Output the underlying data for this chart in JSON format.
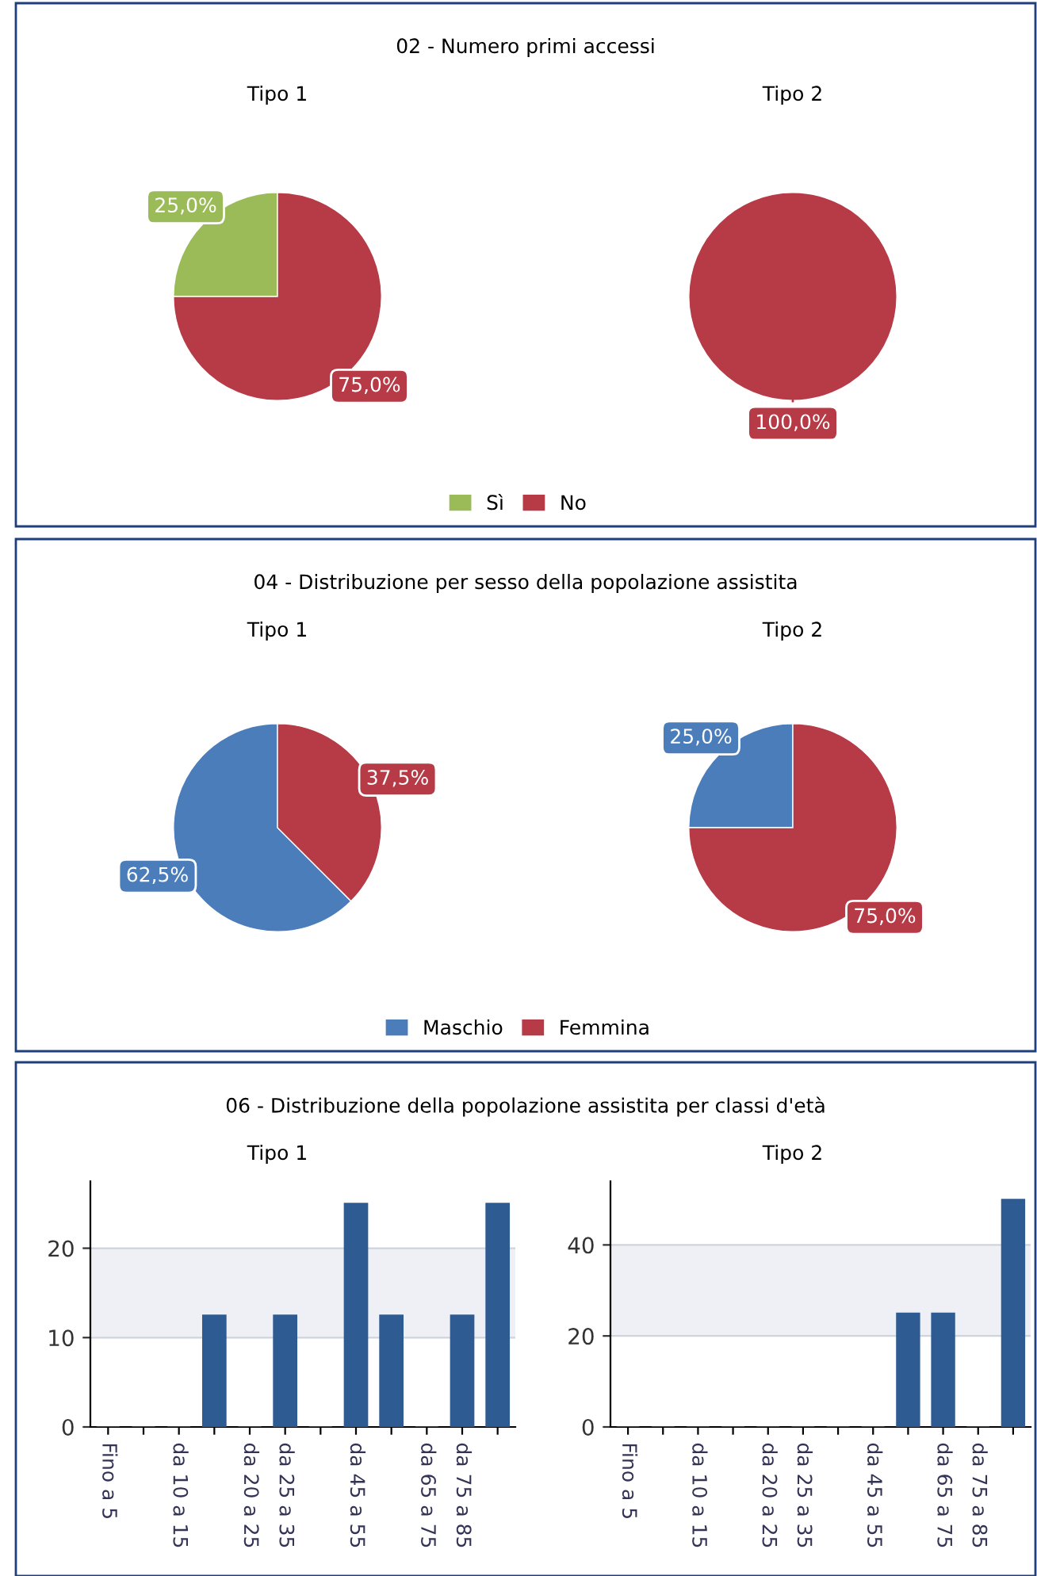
{
  "chart_data": [
    {
      "type": "pie",
      "title": "02 - Numero primi accessi",
      "subtitle": "Tipo 1",
      "categories": [
        "Sì",
        "No"
      ],
      "values": [
        25,
        75
      ],
      "colors": [
        "#9bbb59",
        "#b73a47"
      ],
      "value_labels": [
        "25,0%",
        "75,0%"
      ],
      "legend": "bottom"
    },
    {
      "type": "pie",
      "subtitle": "Tipo 2",
      "categories": [
        null,
        null
      ],
      "values": [
        0,
        100
      ],
      "colors": [
        "#9bbb59",
        "#b73a47"
      ],
      "value_labels": [
        null,
        "100,0%"
      ]
    },
    {
      "type": "pie",
      "title": "04 - Distribuzione per sesso della popolazione assistita",
      "subtitle": "Tipo 1",
      "categories": [
        "Maschio",
        "Femmina"
      ],
      "values": [
        62.5,
        37.5
      ],
      "colors": [
        "#4a7dba",
        "#b73a47"
      ],
      "value_labels": [
        "62,5%",
        "37,5%"
      ],
      "legend": "bottom"
    },
    {
      "type": "pie",
      "subtitle": "Tipo 2",
      "categories": [
        null,
        null
      ],
      "values": [
        25,
        75
      ],
      "colors": [
        "#4a7dba",
        "#b73a47"
      ],
      "value_labels": [
        "25,0%",
        "75,0%"
      ]
    },
    {
      "type": "bar",
      "title": "06 - Distribuzione della popolazione assistita per classi d'età",
      "subtitle": "Tipo 1",
      "categories": [
        "Fino a 5",
        null,
        "da 10 a 15",
        null,
        "da 20 a 25",
        "da 25 a 35",
        null,
        "da 45 a 55",
        null,
        "da 65 a 75",
        "da 75 a 85",
        null
      ],
      "values": [
        0,
        0,
        0,
        12.5,
        0,
        12.5,
        0,
        25,
        12.5,
        0,
        12.5,
        25
      ],
      "color": "#2f5b93",
      "ylim": [
        0,
        27.5
      ],
      "yticks": [
        0,
        10,
        20
      ],
      "grid": "y",
      "bands": [
        {
          "axis": "y",
          "from": 10,
          "to": 20,
          "color": "#eef0f5"
        }
      ]
    },
    {
      "type": "bar",
      "subtitle": "Tipo 2",
      "categories": [
        "Fino a 5",
        null,
        "da 10 a 15",
        null,
        "da 20 a 25",
        "da 25 a 35",
        null,
        "da 45 a 55",
        null,
        "da 65 a 75",
        "da 75 a 85",
        null
      ],
      "values": [
        0,
        0,
        0,
        0,
        0,
        0,
        0,
        0,
        25,
        25,
        0,
        50
      ],
      "color": "#2f5b93",
      "ylim": [
        0,
        54
      ],
      "yticks": [
        0,
        20,
        40
      ],
      "grid": "y",
      "bands": [
        {
          "axis": "y",
          "from": 20,
          "to": 40,
          "color": "#eef0f5"
        }
      ]
    }
  ]
}
